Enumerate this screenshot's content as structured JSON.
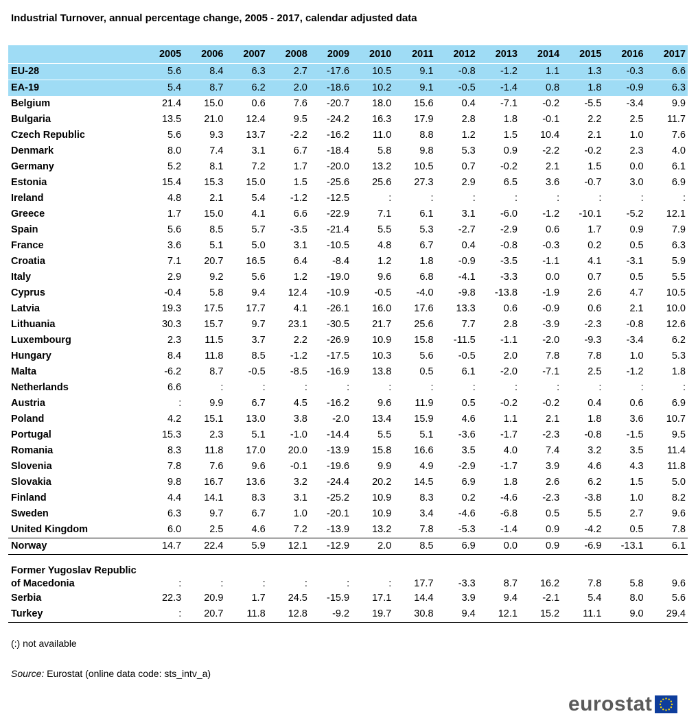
{
  "title": "Industrial Turnover, annual percentage change, 2005 - 2017, calendar adjusted data",
  "years": [
    "2005",
    "2006",
    "2007",
    "2008",
    "2009",
    "2010",
    "2011",
    "2012",
    "2013",
    "2014",
    "2015",
    "2016",
    "2017"
  ],
  "aggregates": [
    {
      "name": "EU-28",
      "values": [
        "5.6",
        "8.4",
        "6.3",
        "2.7",
        "-17.6",
        "10.5",
        "9.1",
        "-0.8",
        "-1.2",
        "1.1",
        "1.3",
        "-0.3",
        "6.6"
      ]
    },
    {
      "name": "EA-19",
      "values": [
        "5.4",
        "8.7",
        "6.2",
        "2.0",
        "-18.6",
        "10.2",
        "9.1",
        "-0.5",
        "-1.4",
        "0.8",
        "1.8",
        "-0.9",
        "6.3"
      ]
    }
  ],
  "countries": [
    {
      "name": "Belgium",
      "values": [
        "21.4",
        "15.0",
        "0.6",
        "7.6",
        "-20.7",
        "18.0",
        "15.6",
        "0.4",
        "-7.1",
        "-0.2",
        "-5.5",
        "-3.4",
        "9.9"
      ]
    },
    {
      "name": "Bulgaria",
      "values": [
        "13.5",
        "21.0",
        "12.4",
        "9.5",
        "-24.2",
        "16.3",
        "17.9",
        "2.8",
        "1.8",
        "-0.1",
        "2.2",
        "2.5",
        "11.7"
      ]
    },
    {
      "name": "Czech Republic",
      "values": [
        "5.6",
        "9.3",
        "13.7",
        "-2.2",
        "-16.2",
        "11.0",
        "8.8",
        "1.2",
        "1.5",
        "10.4",
        "2.1",
        "1.0",
        "7.6"
      ]
    },
    {
      "name": "Denmark",
      "values": [
        "8.0",
        "7.4",
        "3.1",
        "6.7",
        "-18.4",
        "5.8",
        "9.8",
        "5.3",
        "0.9",
        "-2.2",
        "-0.2",
        "2.3",
        "4.0"
      ]
    },
    {
      "name": "Germany",
      "values": [
        "5.2",
        "8.1",
        "7.2",
        "1.7",
        "-20.0",
        "13.2",
        "10.5",
        "0.7",
        "-0.2",
        "2.1",
        "1.5",
        "0.0",
        "6.1"
      ]
    },
    {
      "name": "Estonia",
      "values": [
        "15.4",
        "15.3",
        "15.0",
        "1.5",
        "-25.6",
        "25.6",
        "27.3",
        "2.9",
        "6.5",
        "3.6",
        "-0.7",
        "3.0",
        "6.9"
      ]
    },
    {
      "name": "Ireland",
      "values": [
        "4.8",
        "2.1",
        "5.4",
        "-1.2",
        "-12.5",
        ":",
        ":",
        ":",
        ":",
        ":",
        ":",
        ":",
        ":"
      ]
    },
    {
      "name": "Greece",
      "values": [
        "1.7",
        "15.0",
        "4.1",
        "6.6",
        "-22.9",
        "7.1",
        "6.1",
        "3.1",
        "-6.0",
        "-1.2",
        "-10.1",
        "-5.2",
        "12.1"
      ]
    },
    {
      "name": "Spain",
      "values": [
        "5.6",
        "8.5",
        "5.7",
        "-3.5",
        "-21.4",
        "5.5",
        "5.3",
        "-2.7",
        "-2.9",
        "0.6",
        "1.7",
        "0.9",
        "7.9"
      ]
    },
    {
      "name": "France",
      "values": [
        "3.6",
        "5.1",
        "5.0",
        "3.1",
        "-10.5",
        "4.8",
        "6.7",
        "0.4",
        "-0.8",
        "-0.3",
        "0.2",
        "0.5",
        "6.3"
      ]
    },
    {
      "name": "Croatia",
      "values": [
        "7.1",
        "20.7",
        "16.5",
        "6.4",
        "-8.4",
        "1.2",
        "1.8",
        "-0.9",
        "-3.5",
        "-1.1",
        "4.1",
        "-3.1",
        "5.9"
      ]
    },
    {
      "name": "Italy",
      "values": [
        "2.9",
        "9.2",
        "5.6",
        "1.2",
        "-19.0",
        "9.6",
        "6.8",
        "-4.1",
        "-3.3",
        "0.0",
        "0.7",
        "0.5",
        "5.5"
      ]
    },
    {
      "name": "Cyprus",
      "values": [
        "-0.4",
        "5.8",
        "9.4",
        "12.4",
        "-10.9",
        "-0.5",
        "-4.0",
        "-9.8",
        "-13.8",
        "-1.9",
        "2.6",
        "4.7",
        "10.5"
      ]
    },
    {
      "name": "Latvia",
      "values": [
        "19.3",
        "17.5",
        "17.7",
        "4.1",
        "-26.1",
        "16.0",
        "17.6",
        "13.3",
        "0.6",
        "-0.9",
        "0.6",
        "2.1",
        "10.0"
      ]
    },
    {
      "name": "Lithuania",
      "values": [
        "30.3",
        "15.7",
        "9.7",
        "23.1",
        "-30.5",
        "21.7",
        "25.6",
        "7.7",
        "2.8",
        "-3.9",
        "-2.3",
        "-0.8",
        "12.6"
      ]
    },
    {
      "name": "Luxembourg",
      "values": [
        "2.3",
        "11.5",
        "3.7",
        "2.2",
        "-26.9",
        "10.9",
        "15.8",
        "-11.5",
        "-1.1",
        "-2.0",
        "-9.3",
        "-3.4",
        "6.2"
      ]
    },
    {
      "name": "Hungary",
      "values": [
        "8.4",
        "11.8",
        "8.5",
        "-1.2",
        "-17.5",
        "10.3",
        "5.6",
        "-0.5",
        "2.0",
        "7.8",
        "7.8",
        "1.0",
        "5.3"
      ]
    },
    {
      "name": "Malta",
      "values": [
        "-6.2",
        "8.7",
        "-0.5",
        "-8.5",
        "-16.9",
        "13.8",
        "0.5",
        "6.1",
        "-2.0",
        "-7.1",
        "2.5",
        "-1.2",
        "1.8"
      ]
    },
    {
      "name": "Netherlands",
      "values": [
        "6.6",
        ":",
        ":",
        ":",
        ":",
        ":",
        ":",
        ":",
        ":",
        ":",
        ":",
        ":",
        ":"
      ]
    },
    {
      "name": "Austria",
      "values": [
        ":",
        "9.9",
        "6.7",
        "4.5",
        "-16.2",
        "9.6",
        "11.9",
        "0.5",
        "-0.2",
        "-0.2",
        "0.4",
        "0.6",
        "6.9"
      ]
    },
    {
      "name": "Poland",
      "values": [
        "4.2",
        "15.1",
        "13.0",
        "3.8",
        "-2.0",
        "13.4",
        "15.9",
        "4.6",
        "1.1",
        "2.1",
        "1.8",
        "3.6",
        "10.7"
      ]
    },
    {
      "name": "Portugal",
      "values": [
        "15.3",
        "2.3",
        "5.1",
        "-1.0",
        "-14.4",
        "5.5",
        "5.1",
        "-3.6",
        "-1.7",
        "-2.3",
        "-0.8",
        "-1.5",
        "9.5"
      ]
    },
    {
      "name": "Romania",
      "values": [
        "8.3",
        "11.8",
        "17.0",
        "20.0",
        "-13.9",
        "15.8",
        "16.6",
        "3.5",
        "4.0",
        "7.4",
        "3.2",
        "3.5",
        "11.4"
      ]
    },
    {
      "name": "Slovenia",
      "values": [
        "7.8",
        "7.6",
        "9.6",
        "-0.1",
        "-19.6",
        "9.9",
        "4.9",
        "-2.9",
        "-1.7",
        "3.9",
        "4.6",
        "4.3",
        "11.8"
      ]
    },
    {
      "name": "Slovakia",
      "values": [
        "9.8",
        "16.7",
        "13.6",
        "3.2",
        "-24.4",
        "20.2",
        "14.5",
        "6.9",
        "1.8",
        "2.6",
        "6.2",
        "1.5",
        "5.0"
      ]
    },
    {
      "name": "Finland",
      "values": [
        "4.4",
        "14.1",
        "8.3",
        "3.1",
        "-25.2",
        "10.9",
        "8.3",
        "0.2",
        "-4.6",
        "-2.3",
        "-3.8",
        "1.0",
        "8.2"
      ]
    },
    {
      "name": "Sweden",
      "values": [
        "6.3",
        "9.7",
        "6.7",
        "1.0",
        "-20.1",
        "10.9",
        "3.4",
        "-4.6",
        "-6.8",
        "0.5",
        "5.5",
        "2.7",
        "9.6"
      ]
    },
    {
      "name": "United Kingdom",
      "values": [
        "6.0",
        "2.5",
        "4.6",
        "7.2",
        "-13.9",
        "13.2",
        "7.8",
        "-5.3",
        "-1.4",
        "0.9",
        "-4.2",
        "0.5",
        "7.8"
      ]
    }
  ],
  "norway": {
    "name": "Norway",
    "values": [
      "14.7",
      "22.4",
      "5.9",
      "12.1",
      "-12.9",
      "2.0",
      "8.5",
      "6.9",
      "0.0",
      "0.9",
      "-6.9",
      "-13.1",
      "6.1"
    ]
  },
  "fyrom": {
    "name_line1": "Former Yugoslav Republic",
    "name_line2": "of Macedonia",
    "values": [
      ":",
      ":",
      ":",
      ":",
      ":",
      ":",
      "17.7",
      "-3.3",
      "8.7",
      "16.2",
      "7.8",
      "5.8",
      "9.6"
    ]
  },
  "others": [
    {
      "name": "Serbia",
      "values": [
        "22.3",
        "20.9",
        "1.7",
        "24.5",
        "-15.9",
        "17.1",
        "14.4",
        "3.9",
        "9.4",
        "-2.1",
        "5.4",
        "8.0",
        "5.6"
      ]
    },
    {
      "name": "Turkey",
      "values": [
        ":",
        "20.7",
        "11.8",
        "12.8",
        "-9.2",
        "19.7",
        "30.8",
        "9.4",
        "12.1",
        "15.2",
        "11.1",
        "9.0",
        "29.4"
      ]
    }
  ],
  "note": "(:) not available",
  "source_label": "Source:",
  "source_text": " Eurostat (online data code: sts_intv_a)",
  "logo_text": "eurostat",
  "colors": {
    "header_bg": "#9fdcf5",
    "logo_text": "#5a5a5a",
    "eu_flag": "#0e3d9c",
    "eu_star": "#ffdd00"
  }
}
